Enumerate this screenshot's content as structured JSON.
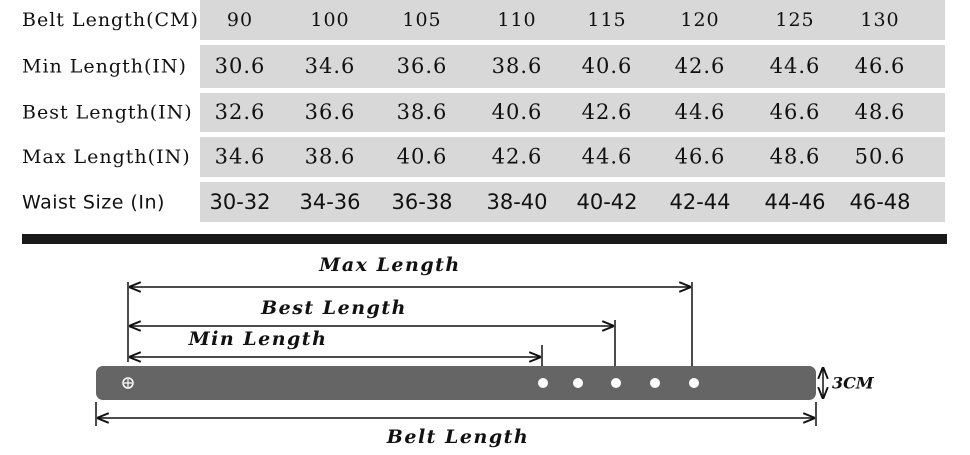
{
  "table": {
    "header": {
      "label": "Belt Length(CM)",
      "cells": [
        "90",
        "100",
        "105",
        "110",
        "115",
        "120",
        "125",
        "130"
      ]
    },
    "rows": [
      {
        "label": "Min Length(IN)",
        "cells": [
          "30.6",
          "34.6",
          "36.6",
          "38.6",
          "40.6",
          "42.6",
          "44.6",
          "46.6"
        ]
      },
      {
        "label": "Best Length(IN)",
        "cells": [
          "32.6",
          "36.6",
          "38.6",
          "40.6",
          "42.6",
          "44.6",
          "46.6",
          "48.6"
        ]
      },
      {
        "label": "Max Length(IN)",
        "cells": [
          "34.6",
          "38.6",
          "40.6",
          "42.6",
          "44.6",
          "46.6",
          "48.6",
          "50.6"
        ]
      },
      {
        "label": "Waist Size (In)",
        "cells": [
          "30-32",
          "34-36",
          "36-38",
          "38-40",
          "40-42",
          "42-44",
          "44-46",
          "46-48"
        ]
      }
    ]
  },
  "diagram": {
    "max_label": "Max Length",
    "best_label": "Best Length",
    "min_label": "Min Length",
    "belt_label": "Belt Length",
    "width_label": "3CM"
  }
}
